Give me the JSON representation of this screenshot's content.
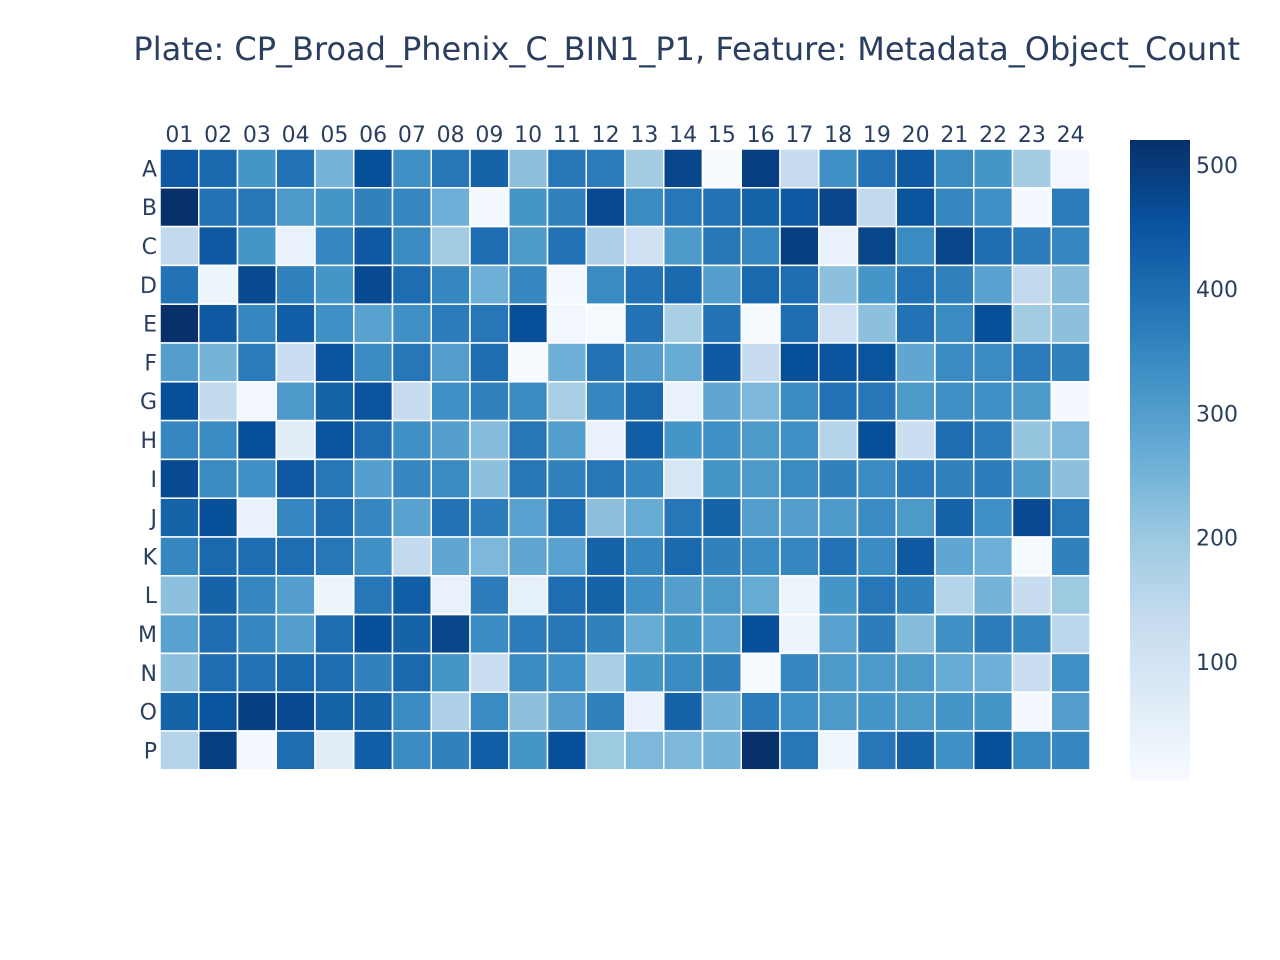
{
  "chart_data": {
    "type": "heatmap",
    "title": "Plate: CP_Broad_Phenix_C_BIN1_P1, Feature: Metadata_Object_Count",
    "xlabel": "",
    "ylabel": "",
    "columns": [
      "01",
      "02",
      "03",
      "04",
      "05",
      "06",
      "07",
      "08",
      "09",
      "10",
      "11",
      "12",
      "13",
      "14",
      "15",
      "16",
      "17",
      "18",
      "19",
      "20",
      "21",
      "22",
      "23",
      "24"
    ],
    "rows": [
      "A",
      "B",
      "C",
      "D",
      "E",
      "F",
      "G",
      "H",
      "I",
      "J",
      "K",
      "L",
      "M",
      "N",
      "O",
      "P"
    ],
    "colorscale": "Blues",
    "colors": [
      "#f7fbff",
      "#deebf7",
      "#c6dbef",
      "#9ecae1",
      "#6baed6",
      "#4292c6",
      "#2171b5",
      "#08519c",
      "#08306b"
    ],
    "zrange": [
      5,
      520
    ],
    "colorbar_ticks": [
      100,
      200,
      300,
      400,
      500
    ],
    "colorbar_tick_labels": [
      "100",
      "200",
      "300",
      "400",
      "500"
    ],
    "grid": false,
    "legend": "colorbar-right",
    "z": [
      [
        440,
        410,
        320,
        390,
        250,
        460,
        330,
        380,
        420,
        220,
        380,
        370,
        190,
        480,
        10,
        490,
        130,
        330,
        390,
        440,
        340,
        320,
        190,
        20
      ],
      [
        520,
        390,
        380,
        310,
        320,
        360,
        350,
        260,
        15,
        320,
        360,
        470,
        340,
        380,
        390,
        420,
        440,
        480,
        140,
        450,
        350,
        330,
        15,
        370
      ],
      [
        140,
        440,
        320,
        40,
        350,
        440,
        340,
        190,
        400,
        310,
        390,
        170,
        110,
        310,
        380,
        350,
        490,
        40,
        480,
        340,
        480,
        400,
        370,
        350
      ],
      [
        390,
        30,
        470,
        360,
        320,
        470,
        400,
        350,
        260,
        350,
        15,
        340,
        390,
        410,
        300,
        410,
        400,
        220,
        320,
        390,
        360,
        290,
        140,
        230
      ],
      [
        520,
        440,
        350,
        430,
        330,
        290,
        330,
        370,
        380,
        460,
        20,
        10,
        390,
        180,
        390,
        10,
        400,
        110,
        220,
        390,
        340,
        460,
        190,
        220
      ],
      [
        300,
        250,
        370,
        120,
        450,
        340,
        380,
        300,
        400,
        5,
        260,
        390,
        300,
        270,
        440,
        130,
        460,
        450,
        450,
        280,
        340,
        340,
        370,
        360
      ],
      [
        460,
        140,
        20,
        310,
        420,
        450,
        130,
        330,
        360,
        340,
        180,
        350,
        410,
        40,
        280,
        240,
        340,
        390,
        380,
        310,
        330,
        330,
        310,
        15
      ],
      [
        350,
        340,
        460,
        60,
        450,
        400,
        330,
        300,
        230,
        380,
        300,
        40,
        430,
        320,
        330,
        310,
        330,
        160,
        460,
        120,
        400,
        370,
        210,
        240
      ],
      [
        470,
        340,
        330,
        440,
        380,
        300,
        350,
        340,
        220,
        380,
        360,
        380,
        350,
        90,
        320,
        310,
        340,
        360,
        340,
        370,
        360,
        370,
        310,
        220
      ],
      [
        420,
        460,
        40,
        350,
        400,
        350,
        290,
        390,
        370,
        290,
        400,
        220,
        270,
        380,
        420,
        300,
        300,
        310,
        340,
        310,
        420,
        330,
        470,
        380
      ],
      [
        350,
        410,
        400,
        400,
        380,
        330,
        140,
        280,
        240,
        280,
        290,
        420,
        350,
        410,
        360,
        340,
        350,
        390,
        340,
        440,
        280,
        260,
        10,
        360
      ],
      [
        220,
        420,
        350,
        300,
        30,
        380,
        430,
        40,
        370,
        50,
        400,
        420,
        330,
        300,
        310,
        270,
        30,
        320,
        380,
        360,
        160,
        250,
        130,
        200
      ],
      [
        290,
        400,
        350,
        300,
        400,
        460,
        420,
        480,
        340,
        370,
        380,
        360,
        270,
        320,
        290,
        460,
        30,
        290,
        370,
        230,
        330,
        370,
        350,
        150
      ],
      [
        220,
        400,
        390,
        410,
        400,
        360,
        410,
        320,
        120,
        340,
        330,
        180,
        320,
        340,
        360,
        10,
        350,
        310,
        310,
        310,
        270,
        260,
        120,
        330
      ],
      [
        420,
        450,
        490,
        470,
        420,
        420,
        340,
        170,
        340,
        220,
        300,
        360,
        40,
        420,
        250,
        370,
        330,
        310,
        320,
        310,
        320,
        320,
        15,
        300
      ],
      [
        160,
        490,
        15,
        400,
        60,
        430,
        340,
        360,
        430,
        320,
        460,
        200,
        240,
        240,
        250,
        520,
        380,
        25,
        380,
        420,
        330,
        460,
        340,
        350
      ]
    ]
  }
}
